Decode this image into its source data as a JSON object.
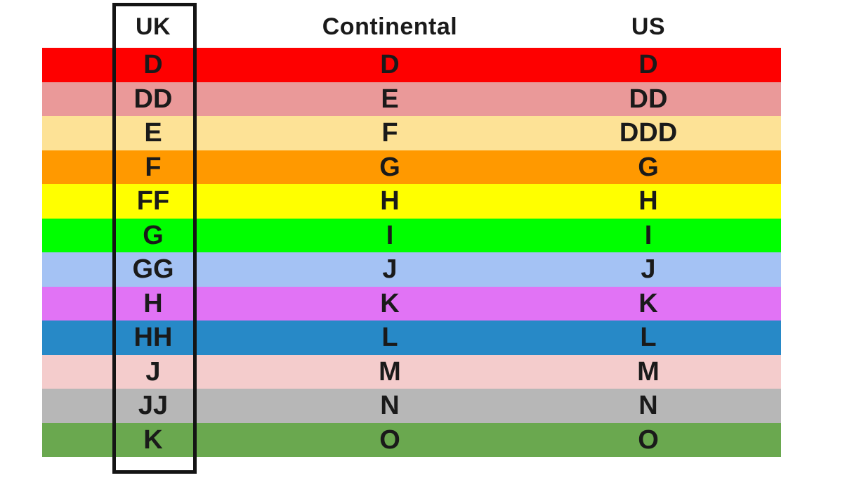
{
  "table": {
    "columns": [
      "UK",
      "Continental",
      "US"
    ],
    "rows": [
      {
        "uk": "D",
        "continental": "D",
        "us": "D",
        "color": "#FE0000"
      },
      {
        "uk": "DD",
        "continental": "E",
        "us": "DD",
        "color": "#EA9999"
      },
      {
        "uk": "E",
        "continental": "F",
        "us": "DDD",
        "color": "#FDE296"
      },
      {
        "uk": "F",
        "continental": "G",
        "us": "G",
        "color": "#FF9900"
      },
      {
        "uk": "FF",
        "continental": "H",
        "us": "H",
        "color": "#FFFF00"
      },
      {
        "uk": "G",
        "continental": "I",
        "us": "I",
        "color": "#00FF00"
      },
      {
        "uk": "GG",
        "continental": "J",
        "us": "J",
        "color": "#A4C2F4"
      },
      {
        "uk": "H",
        "continental": "K",
        "us": "K",
        "color": "#E173F5"
      },
      {
        "uk": "HH",
        "continental": "L",
        "us": "L",
        "color": "#2789C7"
      },
      {
        "uk": "J",
        "continental": "M",
        "us": "M",
        "color": "#F4CCCC"
      },
      {
        "uk": "JJ",
        "continental": "N",
        "us": "N",
        "color": "#B7B7B7"
      },
      {
        "uk": "K",
        "continental": "O",
        "us": "O",
        "color": "#6AA84F"
      }
    ]
  },
  "highlight": {
    "target_column": "UK",
    "border_color": "#141414"
  },
  "chart_data": {
    "type": "table",
    "title": "",
    "columns": [
      "UK",
      "Continental",
      "US"
    ],
    "rows": [
      [
        "D",
        "D",
        "D"
      ],
      [
        "DD",
        "E",
        "DD"
      ],
      [
        "E",
        "F",
        "DDD"
      ],
      [
        "F",
        "G",
        "G"
      ],
      [
        "FF",
        "H",
        "H"
      ],
      [
        "G",
        "I",
        "I"
      ],
      [
        "GG",
        "J",
        "J"
      ],
      [
        "H",
        "K",
        "K"
      ],
      [
        "HH",
        "L",
        "L"
      ],
      [
        "J",
        "M",
        "M"
      ],
      [
        "JJ",
        "N",
        "N"
      ],
      [
        "K",
        "O",
        "O"
      ]
    ],
    "row_colors": [
      "#FE0000",
      "#EA9999",
      "#FDE296",
      "#FF9900",
      "#FFFF00",
      "#00FF00",
      "#A4C2F4",
      "#E173F5",
      "#2789C7",
      "#F4CCCC",
      "#B7B7B7",
      "#6AA84F"
    ],
    "annotations": [
      "UK column outlined with black rectangle"
    ]
  }
}
